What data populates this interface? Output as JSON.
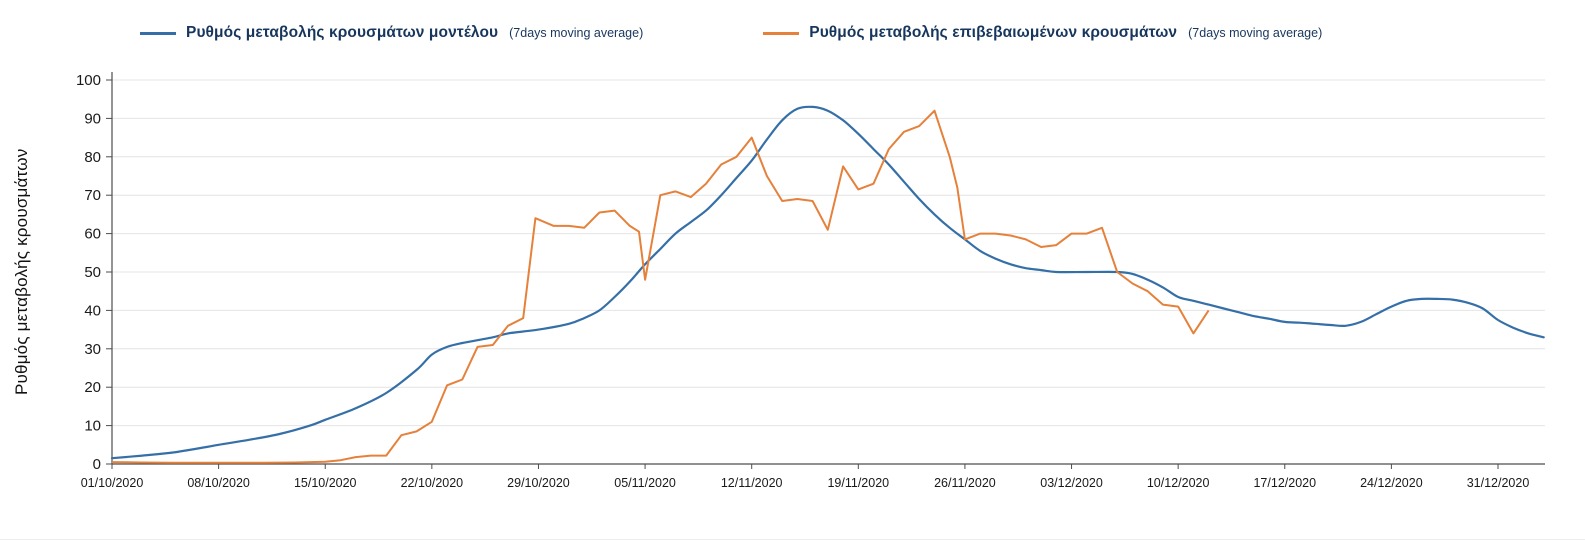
{
  "page": {
    "background": "#ffffff"
  },
  "chart_data": {
    "type": "line",
    "title": "",
    "xlabel": "",
    "ylabel": "Ρυθμός μεταβολής κρουσμάτων",
    "ylim": [
      0,
      100
    ],
    "y_ticks": [
      0,
      10,
      20,
      30,
      40,
      50,
      60,
      70,
      80,
      90,
      100
    ],
    "grid": "horizontal",
    "legend_position": "top",
    "x_unit": "days since 01/10/2020, daily points, weekly ticks",
    "x_ticks": [
      {
        "day": 0,
        "label": "01/10/2020"
      },
      {
        "day": 7,
        "label": "08/10/2020"
      },
      {
        "day": 14,
        "label": "15/10/2020"
      },
      {
        "day": 21,
        "label": "22/10/2020"
      },
      {
        "day": 28,
        "label": "29/10/2020"
      },
      {
        "day": 35,
        "label": "05/11/2020"
      },
      {
        "day": 42,
        "label": "12/11/2020"
      },
      {
        "day": 49,
        "label": "19/11/2020"
      },
      {
        "day": 56,
        "label": "26/11/2020"
      },
      {
        "day": 63,
        "label": "03/12/2020"
      },
      {
        "day": 70,
        "label": "10/12/2020"
      },
      {
        "day": 77,
        "label": "17/12/2020"
      },
      {
        "day": 84,
        "label": "24/12/2020"
      },
      {
        "day": 91,
        "label": "31/12/2020"
      }
    ],
    "series": [
      {
        "label": "Ρυθμός μεταβολής κρουσμάτων μοντέλου",
        "suffix": "(7days moving average)",
        "color": "#356fa8",
        "smooth": true,
        "points": [
          [
            0,
            1.5
          ],
          [
            2,
            2.2
          ],
          [
            4,
            3
          ],
          [
            6,
            4.3
          ],
          [
            7,
            5
          ],
          [
            9,
            6.3
          ],
          [
            11,
            7.8
          ],
          [
            13,
            10
          ],
          [
            14,
            11.5
          ],
          [
            16,
            14.5
          ],
          [
            18,
            18.5
          ],
          [
            20,
            24.5
          ],
          [
            21,
            28.5
          ],
          [
            22,
            30.5
          ],
          [
            23,
            31.5
          ],
          [
            25,
            33
          ],
          [
            26,
            34
          ],
          [
            28,
            35
          ],
          [
            30,
            36.5
          ],
          [
            31,
            38
          ],
          [
            32,
            40
          ],
          [
            33,
            43.5
          ],
          [
            34,
            47.5
          ],
          [
            35,
            52
          ],
          [
            36,
            56
          ],
          [
            37,
            60
          ],
          [
            38,
            63
          ],
          [
            39,
            66
          ],
          [
            40,
            70
          ],
          [
            41,
            74.5
          ],
          [
            42,
            79
          ],
          [
            43,
            84.5
          ],
          [
            44,
            89.5
          ],
          [
            45,
            92.5
          ],
          [
            46,
            93
          ],
          [
            47,
            92
          ],
          [
            48,
            89.5
          ],
          [
            49,
            86
          ],
          [
            50,
            82
          ],
          [
            51,
            78
          ],
          [
            52,
            73.5
          ],
          [
            53,
            69
          ],
          [
            54,
            65
          ],
          [
            55,
            61.5
          ],
          [
            56,
            58.5
          ],
          [
            57,
            55.5
          ],
          [
            58,
            53.5
          ],
          [
            59,
            52
          ],
          [
            60,
            51
          ],
          [
            61,
            50.5
          ],
          [
            62,
            50
          ],
          [
            64,
            50
          ],
          [
            66,
            50
          ],
          [
            67,
            49.5
          ],
          [
            68,
            48
          ],
          [
            69,
            46
          ],
          [
            70,
            43.5
          ],
          [
            71,
            42.5
          ],
          [
            72,
            41.5
          ],
          [
            73,
            40.5
          ],
          [
            74,
            39.5
          ],
          [
            75,
            38.5
          ],
          [
            76,
            37.8
          ],
          [
            77,
            37
          ],
          [
            78,
            36.8
          ],
          [
            79,
            36.5
          ],
          [
            80,
            36.2
          ],
          [
            81,
            36
          ],
          [
            82,
            37
          ],
          [
            83,
            39
          ],
          [
            84,
            41
          ],
          [
            85,
            42.5
          ],
          [
            86,
            43
          ],
          [
            87,
            43
          ],
          [
            88,
            42.8
          ],
          [
            89,
            42
          ],
          [
            90,
            40.5
          ],
          [
            91,
            37.5
          ],
          [
            92,
            35.5
          ],
          [
            93,
            34
          ],
          [
            94,
            33
          ]
        ]
      },
      {
        "label": "Ρυθμός μεταβολής επιβεβαιωμένων κρουσμάτων",
        "suffix": "(7days moving average)",
        "color": "#e5813a",
        "smooth": false,
        "points": [
          [
            0,
            0.5
          ],
          [
            2,
            0.4
          ],
          [
            4,
            0.3
          ],
          [
            6,
            0.3
          ],
          [
            8,
            0.3
          ],
          [
            10,
            0.3
          ],
          [
            12,
            0.4
          ],
          [
            14,
            0.6
          ],
          [
            15,
            1
          ],
          [
            16,
            1.8
          ],
          [
            17,
            2.2
          ],
          [
            18,
            2.2
          ],
          [
            19,
            7.5
          ],
          [
            20,
            8.5
          ],
          [
            21,
            11
          ],
          [
            22,
            20.5
          ],
          [
            23,
            22
          ],
          [
            24,
            30.5
          ],
          [
            25,
            31
          ],
          [
            26,
            36
          ],
          [
            27,
            38
          ],
          [
            27.8,
            64
          ],
          [
            29,
            62
          ],
          [
            30,
            62
          ],
          [
            31,
            61.5
          ],
          [
            32,
            65.5
          ],
          [
            33,
            66
          ],
          [
            34,
            62
          ],
          [
            34.6,
            60.5
          ],
          [
            35,
            48
          ],
          [
            36,
            70
          ],
          [
            37,
            71
          ],
          [
            38,
            69.5
          ],
          [
            39,
            73
          ],
          [
            40,
            78
          ],
          [
            41,
            80
          ],
          [
            42,
            85
          ],
          [
            43,
            75
          ],
          [
            44,
            68.5
          ],
          [
            45,
            69
          ],
          [
            46,
            68.5
          ],
          [
            47,
            61
          ],
          [
            48,
            77.5
          ],
          [
            49,
            71.5
          ],
          [
            50,
            73
          ],
          [
            51,
            82
          ],
          [
            52,
            86.5
          ],
          [
            53,
            88
          ],
          [
            54,
            92
          ],
          [
            55,
            80
          ],
          [
            55.5,
            72
          ],
          [
            56,
            58.5
          ],
          [
            57,
            60
          ],
          [
            58,
            60
          ],
          [
            59,
            59.5
          ],
          [
            60,
            58.5
          ],
          [
            61,
            56.5
          ],
          [
            62,
            57
          ],
          [
            63,
            60
          ],
          [
            64,
            60
          ],
          [
            65,
            61.5
          ],
          [
            66,
            50
          ],
          [
            67,
            47
          ],
          [
            68,
            45
          ],
          [
            69,
            41.5
          ],
          [
            70,
            41
          ],
          [
            71,
            34
          ],
          [
            72,
            40
          ]
        ]
      }
    ]
  }
}
